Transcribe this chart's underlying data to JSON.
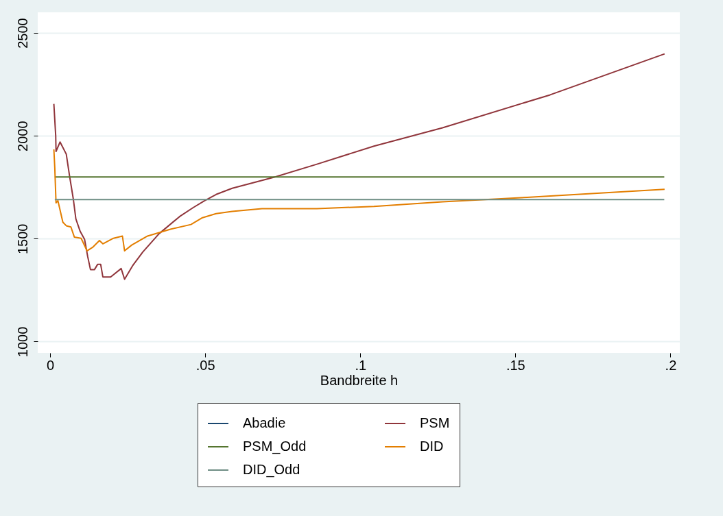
{
  "chart_data": {
    "type": "line",
    "xlabel": "Bandbreite h",
    "xlim": [
      -0.004,
      0.203
    ],
    "ylim": [
      945,
      2600
    ],
    "xticks": [
      0,
      {
        "value": 0.05,
        "label": ".05"
      },
      {
        "value": 0.1,
        "label": ".1"
      },
      {
        "value": 0.15,
        "label": ".15"
      },
      {
        "value": 0.2,
        "label": ".2"
      }
    ],
    "yticks": [
      1000,
      1500,
      2000,
      2500
    ],
    "grid": "y",
    "legend": "bottom",
    "marker": "none",
    "line_style": "solid",
    "series": [
      {
        "name": "Abadie",
        "color": "#1a476f"
      },
      {
        "name": "PSM",
        "color": "#90353b",
        "x": [
          0.0012,
          0.0018,
          0.0019,
          0.0032,
          0.0052,
          0.0063,
          0.0075,
          0.0083,
          0.0097,
          0.0111,
          0.0121,
          0.013,
          0.0143,
          0.0153,
          0.0163,
          0.017,
          0.0195,
          0.0229,
          0.024,
          0.0266,
          0.0299,
          0.0351,
          0.0417,
          0.0461,
          0.0498,
          0.0535,
          0.0587,
          0.0727,
          0.086,
          0.1044,
          0.1265,
          0.1612,
          0.1981
        ],
        "values": [
          2155,
          2000,
          1924,
          1970,
          1911,
          1801,
          1690,
          1596,
          1535,
          1497,
          1414,
          1350,
          1350,
          1375,
          1375,
          1314,
          1314,
          1355,
          1303,
          1369,
          1436,
          1524,
          1607,
          1651,
          1685,
          1715,
          1745,
          1801,
          1862,
          1950,
          2039,
          2199,
          2398
        ]
      },
      {
        "name": "PSM_Odd",
        "color": "#55752f",
        "x": [
          0.0015,
          0.198
        ],
        "values": [
          1800,
          1800
        ]
      },
      {
        "name": "DID",
        "color": "#e37e00",
        "x": [
          0.0012,
          0.0015,
          0.0019,
          0.0025,
          0.0041,
          0.0052,
          0.0067,
          0.0078,
          0.01,
          0.0119,
          0.0137,
          0.0159,
          0.017,
          0.0204,
          0.0233,
          0.024,
          0.0263,
          0.0314,
          0.0388,
          0.0454,
          0.0491,
          0.0535,
          0.0587,
          0.0683,
          0.086,
          0.1044,
          0.1265,
          0.1538,
          0.1981
        ],
        "values": [
          1934,
          1845,
          1674,
          1685,
          1580,
          1563,
          1557,
          1508,
          1502,
          1441,
          1458,
          1491,
          1475,
          1502,
          1513,
          1441,
          1469,
          1513,
          1546,
          1569,
          1602,
          1622,
          1633,
          1646,
          1646,
          1657,
          1679,
          1701,
          1740
        ]
      },
      {
        "name": "DID_Odd",
        "color": "#6e8e84",
        "x": [
          0.0015,
          0.198
        ],
        "values": [
          1690,
          1690
        ]
      }
    ]
  }
}
